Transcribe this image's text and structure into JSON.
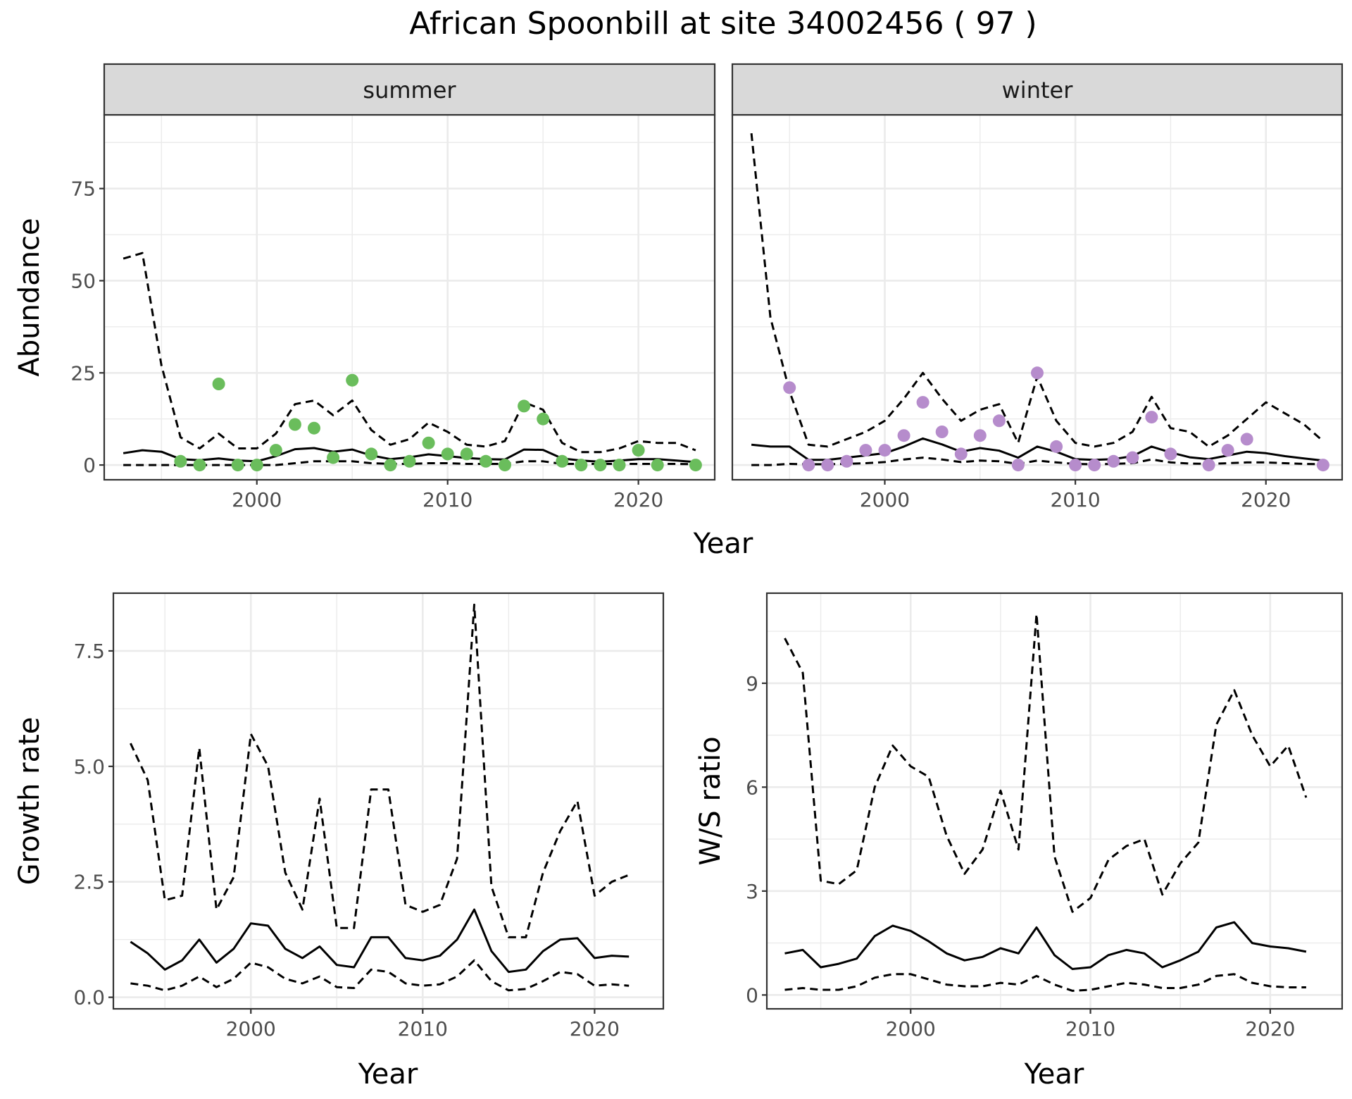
{
  "title": "African Spoonbill at site 34002456 ( 97 )",
  "colors": {
    "summer": "#6ABD5C",
    "winter": "#B68CCC",
    "line": "#000000",
    "grid": "#EBEBEB",
    "strip": "#D9D9D9"
  },
  "chart_data": [
    {
      "type": "line",
      "panel": "abundance",
      "ylabel": "Abundance",
      "xlabel": "Year",
      "xlim": [
        1992,
        2024
      ],
      "ylim": [
        -4,
        95
      ],
      "xticks": [
        2000,
        2010,
        2020
      ],
      "yticks": [
        0,
        25,
        50,
        75
      ],
      "facets": [
        {
          "strip": "summer",
          "point_color": "summer",
          "x": [
            1993,
            1994,
            1995,
            1996,
            1997,
            1998,
            1999,
            2000,
            2001,
            2002,
            2003,
            2004,
            2005,
            2006,
            2007,
            2008,
            2009,
            2010,
            2011,
            2012,
            2013,
            2014,
            2015,
            2016,
            2017,
            2018,
            2019,
            2020,
            2021,
            2022,
            2023
          ],
          "fit": [
            3.2,
            4.0,
            3.6,
            1.6,
            1.3,
            1.8,
            1.2,
            1.0,
            2.4,
            4.3,
            4.6,
            3.6,
            4.2,
            2.6,
            1.6,
            2.1,
            2.9,
            2.4,
            1.9,
            1.6,
            1.5,
            4.2,
            4.1,
            1.8,
            1.2,
            0.9,
            1.2,
            1.6,
            1.6,
            1.2,
            0.8
          ],
          "upper": [
            56,
            57.5,
            27,
            7.5,
            4.5,
            8.5,
            4.5,
            4.5,
            8.5,
            16.5,
            17.5,
            13.5,
            17.5,
            9.5,
            5.5,
            7,
            11.5,
            9,
            5.5,
            5,
            6.5,
            17,
            15,
            6,
            3.5,
            3.5,
            4.5,
            6.5,
            6,
            6,
            4
          ],
          "lower": [
            0,
            0,
            0,
            0,
            0,
            0,
            0,
            0,
            0,
            0.5,
            1,
            1,
            1,
            0.5,
            0.3,
            0.3,
            0.5,
            0.5,
            0.3,
            0.3,
            0.3,
            1,
            1,
            0.3,
            0.3,
            0.3,
            0.3,
            0.3,
            0.3,
            0.3,
            0.2
          ],
          "obs_x": [
            1996,
            1997,
            1998,
            1999,
            2000,
            2001,
            2002,
            2003,
            2004,
            2005,
            2006,
            2007,
            2008,
            2009,
            2010,
            2011,
            2012,
            2013,
            2014,
            2015,
            2016,
            2017,
            2018,
            2019,
            2020,
            2021,
            2023
          ],
          "obs_y": [
            1,
            0,
            22,
            0,
            0,
            4,
            11,
            10,
            2,
            23,
            3,
            0,
            1,
            6,
            3,
            3,
            1,
            0,
            16,
            12.5,
            1,
            0,
            0,
            0,
            4,
            0,
            0
          ]
        },
        {
          "strip": "winter",
          "point_color": "winter",
          "x": [
            1993,
            1994,
            1995,
            1996,
            1997,
            1998,
            1999,
            2000,
            2001,
            2002,
            2003,
            2004,
            2005,
            2006,
            2007,
            2008,
            2009,
            2010,
            2011,
            2012,
            2013,
            2014,
            2015,
            2016,
            2017,
            2018,
            2019,
            2020,
            2021,
            2022,
            2023
          ],
          "fit": [
            5.5,
            5.0,
            5.0,
            1.4,
            1.4,
            2.0,
            2.6,
            3.2,
            5.0,
            7.2,
            5.6,
            3.6,
            4.6,
            3.9,
            2.0,
            5.0,
            3.6,
            1.6,
            1.4,
            1.6,
            2.4,
            5.0,
            3.4,
            2.1,
            1.6,
            2.6,
            3.6,
            3.2,
            2.4,
            1.8,
            1.2
          ],
          "upper": [
            90,
            40,
            20,
            5.5,
            5,
            7,
            9,
            12,
            18,
            25,
            18,
            12,
            15,
            16.5,
            6,
            24,
            12,
            6,
            5,
            6,
            9,
            18.5,
            10,
            9,
            5,
            8,
            12.5,
            17,
            14,
            11,
            6.5
          ],
          "lower": [
            0,
            0,
            0.3,
            0.2,
            0.2,
            0.3,
            0.5,
            0.8,
            1.5,
            2,
            1.5,
            0.8,
            1.2,
            1,
            0.3,
            1.2,
            0.7,
            0.3,
            0.2,
            0.3,
            0.5,
            1.5,
            0.7,
            0.4,
            0.3,
            0.5,
            0.7,
            0.7,
            0.5,
            0.3,
            0.2
          ],
          "obs_x": [
            1995,
            1996,
            1997,
            1998,
            1999,
            2000,
            2001,
            2002,
            2003,
            2004,
            2005,
            2006,
            2007,
            2008,
            2009,
            2010,
            2011,
            2012,
            2013,
            2014,
            2015,
            2017,
            2018,
            2019,
            2023
          ],
          "obs_y": [
            21,
            0,
            0,
            1,
            4,
            4,
            8,
            17,
            9,
            3,
            8,
            12,
            0,
            25,
            5,
            0,
            0,
            1,
            2,
            13,
            3,
            0,
            4,
            7,
            0
          ]
        }
      ]
    },
    {
      "type": "line",
      "panel": "growth",
      "ylabel": "Growth rate",
      "xlabel": "Year",
      "xlim": [
        1992,
        2024
      ],
      "ylim": [
        -0.25,
        8.75
      ],
      "xticks": [
        2000,
        2010,
        2020
      ],
      "yticks": [
        0.0,
        2.5,
        5.0,
        7.5
      ],
      "ytick_labels": [
        "0.0",
        "2.5",
        "5.0",
        "7.5"
      ],
      "x": [
        1993,
        1994,
        1995,
        1996,
        1997,
        1998,
        1999,
        2000,
        2001,
        2002,
        2003,
        2004,
        2005,
        2006,
        2007,
        2008,
        2009,
        2010,
        2011,
        2012,
        2013,
        2014,
        2015,
        2016,
        2017,
        2018,
        2019,
        2020,
        2021,
        2022
      ],
      "fit": [
        1.2,
        0.95,
        0.6,
        0.8,
        1.25,
        0.75,
        1.05,
        1.6,
        1.55,
        1.05,
        0.85,
        1.1,
        0.7,
        0.65,
        1.3,
        1.3,
        0.85,
        0.8,
        0.9,
        1.25,
        1.9,
        1.0,
        0.55,
        0.6,
        1.0,
        1.25,
        1.28,
        0.85,
        0.9,
        0.88
      ],
      "upper": [
        5.5,
        4.7,
        2.1,
        2.2,
        5.4,
        1.9,
        2.6,
        5.7,
        5.0,
        2.7,
        1.9,
        4.3,
        1.5,
        1.5,
        4.5,
        4.5,
        2.0,
        1.85,
        2.0,
        3.0,
        8.5,
        2.4,
        1.3,
        1.3,
        2.7,
        3.6,
        4.25,
        2.2,
        2.5,
        2.65
      ],
      "lower": [
        0.3,
        0.25,
        0.15,
        0.25,
        0.45,
        0.22,
        0.4,
        0.75,
        0.65,
        0.4,
        0.3,
        0.45,
        0.22,
        0.2,
        0.6,
        0.55,
        0.3,
        0.25,
        0.28,
        0.45,
        0.8,
        0.35,
        0.15,
        0.18,
        0.35,
        0.55,
        0.5,
        0.25,
        0.28,
        0.25
      ]
    },
    {
      "type": "line",
      "panel": "ratio",
      "ylabel": "W/S ratio",
      "xlabel": "Year",
      "xlim": [
        1992,
        2024
      ],
      "ylim": [
        -0.4,
        11.6
      ],
      "xticks": [
        2000,
        2010,
        2020
      ],
      "yticks": [
        0,
        3,
        6,
        9
      ],
      "x": [
        1993,
        1994,
        1995,
        1996,
        1997,
        1998,
        1999,
        2000,
        2001,
        2002,
        2003,
        2004,
        2005,
        2006,
        2007,
        2008,
        2009,
        2010,
        2011,
        2012,
        2013,
        2014,
        2015,
        2016,
        2017,
        2018,
        2019,
        2020,
        2021,
        2022
      ],
      "fit": [
        1.2,
        1.3,
        0.8,
        0.9,
        1.05,
        1.7,
        2.0,
        1.85,
        1.55,
        1.2,
        1.0,
        1.1,
        1.35,
        1.2,
        1.95,
        1.15,
        0.75,
        0.8,
        1.15,
        1.3,
        1.2,
        0.8,
        1.0,
        1.25,
        1.95,
        2.1,
        1.5,
        1.4,
        1.35,
        1.25
      ],
      "upper": [
        10.3,
        9.3,
        3.3,
        3.2,
        3.6,
        6.0,
        7.2,
        6.6,
        6.3,
        4.6,
        3.5,
        4.2,
        5.9,
        4.2,
        11.0,
        4.0,
        2.4,
        2.8,
        3.9,
        4.3,
        4.5,
        2.9,
        3.8,
        4.4,
        7.8,
        8.8,
        7.5,
        6.6,
        7.2,
        5.7
      ],
      "lower": [
        0.15,
        0.2,
        0.15,
        0.15,
        0.25,
        0.5,
        0.6,
        0.6,
        0.45,
        0.3,
        0.25,
        0.25,
        0.35,
        0.3,
        0.55,
        0.3,
        0.12,
        0.15,
        0.25,
        0.35,
        0.3,
        0.2,
        0.2,
        0.3,
        0.55,
        0.6,
        0.35,
        0.25,
        0.22,
        0.22
      ]
    }
  ]
}
